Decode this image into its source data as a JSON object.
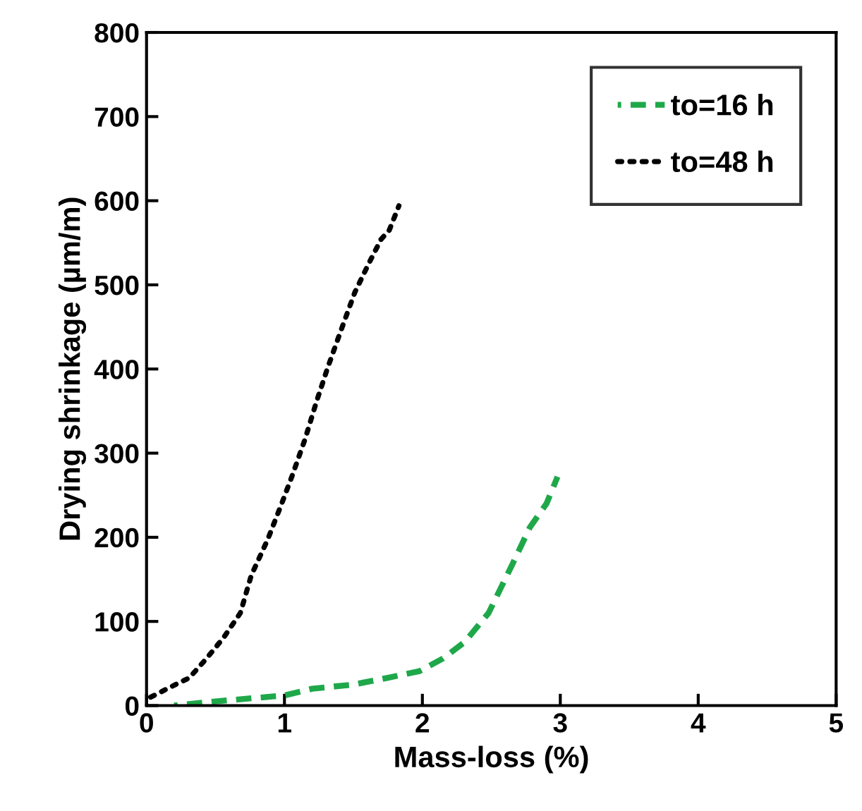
{
  "chart_data": {
    "type": "line",
    "xlabel": "Mass-loss (%)",
    "ylabel": "Drying shrinkage (µm/m)",
    "xlim": [
      0,
      5
    ],
    "ylim": [
      0,
      800
    ],
    "xticks": [
      0,
      1,
      2,
      3,
      4,
      5
    ],
    "yticks": [
      0,
      100,
      200,
      300,
      400,
      500,
      600,
      700,
      800
    ],
    "grid": false,
    "legend": "top right",
    "series": [
      {
        "name": "to=16 h",
        "color": "#1fa84a",
        "line_style": "dashed",
        "x": [
          0.2,
          0.5,
          1.0,
          1.2,
          1.5,
          1.75,
          1.98,
          2.15,
          2.31,
          2.48,
          2.65,
          2.78,
          2.9,
          2.98
        ],
        "values": [
          0,
          5,
          12,
          20,
          25,
          33,
          41,
          56,
          76,
          110,
          167,
          212,
          240,
          272
        ]
      },
      {
        "name": "to=48 h",
        "color": "#000000",
        "line_style": "dotted",
        "x": [
          0.03,
          0.21,
          0.31,
          0.43,
          0.56,
          0.68,
          0.76,
          0.88,
          0.98,
          1.06,
          1.15,
          1.23,
          1.31,
          1.41,
          1.51,
          1.61,
          1.7,
          1.76,
          1.83
        ],
        "values": [
          10,
          25,
          33,
          55,
          81,
          110,
          155,
          198,
          240,
          275,
          317,
          360,
          400,
          446,
          491,
          525,
          554,
          565,
          594
        ]
      }
    ]
  }
}
